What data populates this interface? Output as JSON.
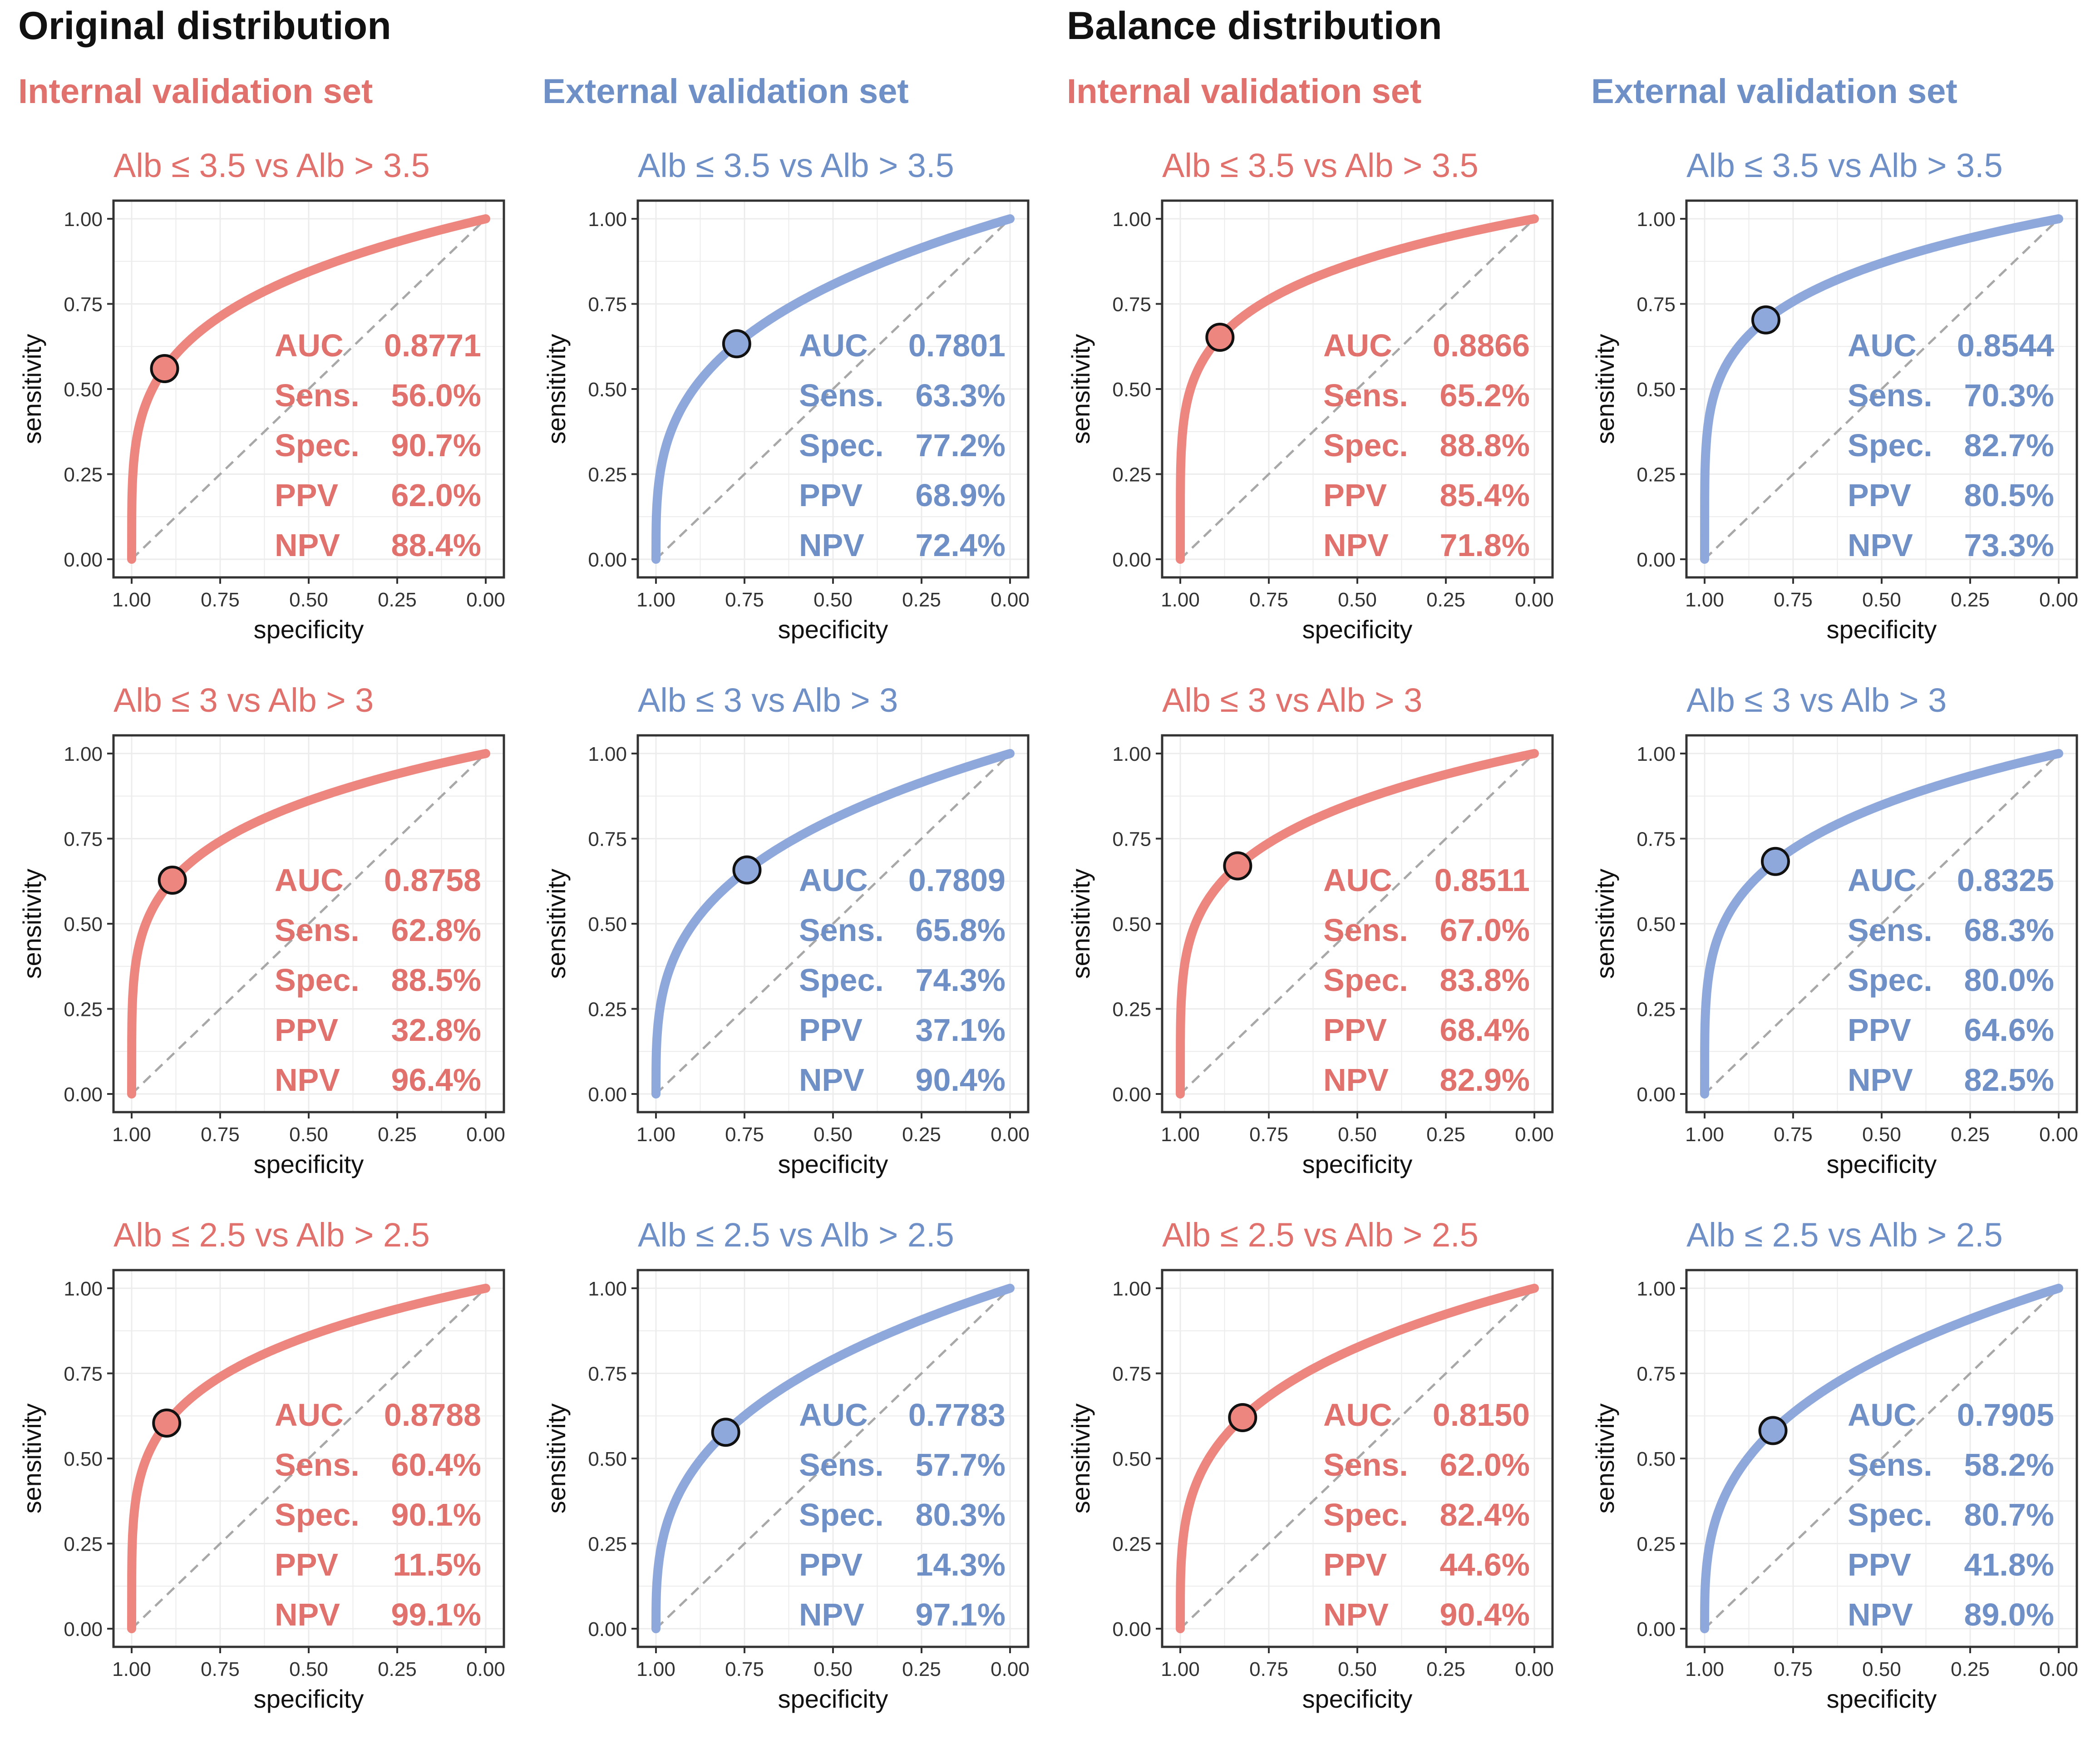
{
  "headers": {
    "original": "Original distribution",
    "balance": "Balance distribution",
    "columns": [
      "Internal validation set",
      "External validation set",
      "Internal validation set",
      "External validation set"
    ]
  },
  "colors": {
    "internal": "#ee8680",
    "external": "#8fa8dc",
    "internal_text": "#e0716c",
    "external_text": "#6f8fc7",
    "diagonal": "#a8a8a8",
    "grid": "#ececec"
  },
  "axes": {
    "xlabel": "specificity",
    "ylabel": "sensitivity",
    "xticks": [
      "1.00",
      "0.75",
      "0.50",
      "0.25",
      "0.00"
    ],
    "yticks": [
      "0.00",
      "0.25",
      "0.50",
      "0.75",
      "1.00"
    ],
    "xlim": [
      1.0,
      0.0
    ],
    "ylim": [
      0.0,
      1.0
    ]
  },
  "metric_labels": [
    "AUC",
    "Sens.",
    "Spec.",
    "PPV",
    "NPV"
  ],
  "chart_data": [
    {
      "type": "line",
      "group": "internal",
      "title": "Alb ≤ 3.5 vs Alb > 3.5",
      "metrics": [
        "0.8771",
        "56.0%",
        "90.7%",
        "62.0%",
        "88.4%"
      ],
      "auc": 0.8771,
      "sens": 0.56,
      "spec": 0.907
    },
    {
      "type": "line",
      "group": "external",
      "title": "Alb ≤ 3.5 vs Alb > 3.5",
      "metrics": [
        "0.7801",
        "63.3%",
        "77.2%",
        "68.9%",
        "72.4%"
      ],
      "auc": 0.7801,
      "sens": 0.633,
      "spec": 0.772
    },
    {
      "type": "line",
      "group": "internal",
      "title": "Alb ≤ 3.5 vs Alb > 3.5",
      "metrics": [
        "0.8866",
        "65.2%",
        "88.8%",
        "85.4%",
        "71.8%"
      ],
      "auc": 0.8866,
      "sens": 0.652,
      "spec": 0.888
    },
    {
      "type": "line",
      "group": "external",
      "title": "Alb ≤ 3.5 vs Alb > 3.5",
      "metrics": [
        "0.8544",
        "70.3%",
        "82.7%",
        "80.5%",
        "73.3%"
      ],
      "auc": 0.8544,
      "sens": 0.703,
      "spec": 0.827
    },
    {
      "type": "line",
      "group": "internal",
      "title": "Alb ≤ 3 vs Alb > 3",
      "metrics": [
        "0.8758",
        "62.8%",
        "88.5%",
        "32.8%",
        "96.4%"
      ],
      "auc": 0.8758,
      "sens": 0.628,
      "spec": 0.885
    },
    {
      "type": "line",
      "group": "external",
      "title": "Alb ≤ 3 vs Alb > 3",
      "metrics": [
        "0.7809",
        "65.8%",
        "74.3%",
        "37.1%",
        "90.4%"
      ],
      "auc": 0.7809,
      "sens": 0.658,
      "spec": 0.743
    },
    {
      "type": "line",
      "group": "internal",
      "title": "Alb ≤ 3 vs Alb > 3",
      "metrics": [
        "0.8511",
        "67.0%",
        "83.8%",
        "68.4%",
        "82.9%"
      ],
      "auc": 0.8511,
      "sens": 0.67,
      "spec": 0.838
    },
    {
      "type": "line",
      "group": "external",
      "title": "Alb ≤ 3 vs Alb > 3",
      "metrics": [
        "0.8325",
        "68.3%",
        "80.0%",
        "64.6%",
        "82.5%"
      ],
      "auc": 0.8325,
      "sens": 0.683,
      "spec": 0.8
    },
    {
      "type": "line",
      "group": "internal",
      "title": "Alb ≤ 2.5 vs Alb > 2.5",
      "metrics": [
        "0.8788",
        "60.4%",
        "90.1%",
        "11.5%",
        "99.1%"
      ],
      "auc": 0.8788,
      "sens": 0.604,
      "spec": 0.901
    },
    {
      "type": "line",
      "group": "external",
      "title": "Alb ≤ 2.5 vs Alb > 2.5",
      "metrics": [
        "0.7783",
        "57.7%",
        "80.3%",
        "14.3%",
        "97.1%"
      ],
      "auc": 0.7783,
      "sens": 0.577,
      "spec": 0.803
    },
    {
      "type": "line",
      "group": "internal",
      "title": "Alb ≤ 2.5 vs Alb > 2.5",
      "metrics": [
        "0.8150",
        "62.0%",
        "82.4%",
        "44.6%",
        "90.4%"
      ],
      "auc": 0.815,
      "sens": 0.62,
      "spec": 0.824
    },
    {
      "type": "line",
      "group": "external",
      "title": "Alb ≤ 2.5 vs Alb > 2.5",
      "metrics": [
        "0.7905",
        "58.2%",
        "80.7%",
        "41.8%",
        "89.0%"
      ],
      "auc": 0.7905,
      "sens": 0.582,
      "spec": 0.807
    }
  ]
}
